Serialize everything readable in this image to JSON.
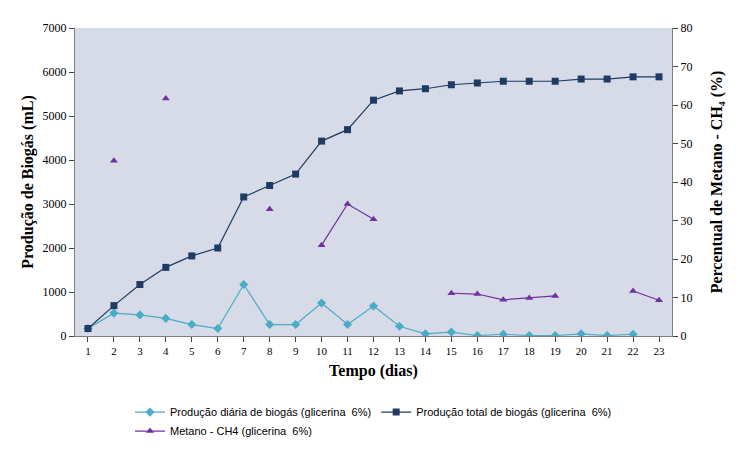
{
  "chart_data": {
    "type": "line",
    "x_label": "Tempo (dias)",
    "y_label": "Produção de Biogás (mL)",
    "y2_label": "Percentual de Metano - CH₄ (%)",
    "categories": [
      "1",
      "2",
      "3",
      "4",
      "5",
      "6",
      "7",
      "8",
      "9",
      "10",
      "11",
      "12",
      "13",
      "14",
      "15",
      "16",
      "17",
      "18",
      "19",
      "20",
      "21",
      "22",
      "23"
    ],
    "ylim": [
      0,
      7000
    ],
    "yticks": [
      0,
      1000,
      2000,
      3000,
      4000,
      5000,
      6000,
      7000
    ],
    "y2lim": [
      0,
      80
    ],
    "y2ticks": [
      0,
      10,
      20,
      30,
      40,
      50,
      60,
      70,
      80
    ],
    "grid": false,
    "legend": "bottom",
    "series": [
      {
        "name": "Produção diária de biogás (glicerina  6%)",
        "color": "#4bacc6",
        "marker": "diamond",
        "line_style": "solid",
        "values": [
          170,
          520,
          480,
          400,
          260,
          170,
          1170,
          260,
          260,
          750,
          260,
          680,
          220,
          50,
          90,
          10,
          40,
          10,
          10,
          50,
          10,
          40,
          null
        ]
      },
      {
        "name": "Produção total de biogás (glicerina  6%)",
        "color": "#1f3a63",
        "marker": "square",
        "line_style": "solid",
        "values": [
          170,
          690,
          1170,
          1560,
          1820,
          2000,
          3160,
          3420,
          3680,
          4430,
          4690,
          5360,
          5570,
          5620,
          5710,
          5750,
          5790,
          5790,
          5790,
          5840,
          5840,
          5890,
          5890
        ]
      },
      {
        "name": "Metano - CH4 (glicerina  6%)",
        "color": "#7030a0",
        "marker": "triangle-up",
        "line_style": "solid",
        "axis": "y2",
        "values": [
          null,
          45.5,
          null,
          61.7,
          null,
          null,
          null,
          32.9,
          null,
          23.6,
          34.3,
          30.3,
          null,
          null,
          11.1,
          10.9,
          9.4,
          9.9,
          10.4,
          null,
          null,
          11.7,
          9.3
        ]
      }
    ]
  }
}
